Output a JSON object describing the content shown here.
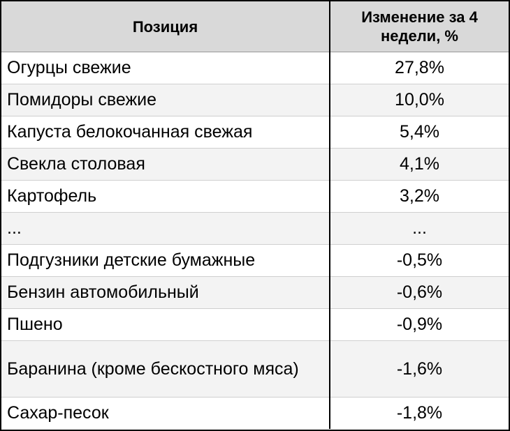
{
  "chart_data": {
    "type": "table",
    "columns": [
      "Позиция",
      "Изменение за 4 недели, %"
    ],
    "rows": [
      {
        "item": "Огурцы свежие",
        "change": "27,8%"
      },
      {
        "item": "Помидоры свежие",
        "change": "10,0%"
      },
      {
        "item": "Капуста белокочанная свежая",
        "change": "5,4%"
      },
      {
        "item": "Свекла столовая",
        "change": "4,1%"
      },
      {
        "item": "Картофель",
        "change": "3,2%"
      },
      {
        "item": "...",
        "change": "..."
      },
      {
        "item": "Подгузники детские бумажные",
        "change": "-0,5%"
      },
      {
        "item": "Бензин автомобильный",
        "change": "-0,6%"
      },
      {
        "item": "Пшено",
        "change": "-0,9%"
      },
      {
        "item": "Баранина (кроме бескостного мяса)",
        "change": "-1,6%"
      },
      {
        "item": "Сахар-песок",
        "change": "-1,8%"
      }
    ],
    "values": [
      27.8,
      10.0,
      5.4,
      4.1,
      3.2,
      null,
      -0.5,
      -0.6,
      -0.9,
      -1.6,
      -1.8
    ]
  },
  "colors": {
    "header_bg": "#d9d9d9",
    "row_alt_bg": "#f3f3f3",
    "border": "#000000"
  }
}
